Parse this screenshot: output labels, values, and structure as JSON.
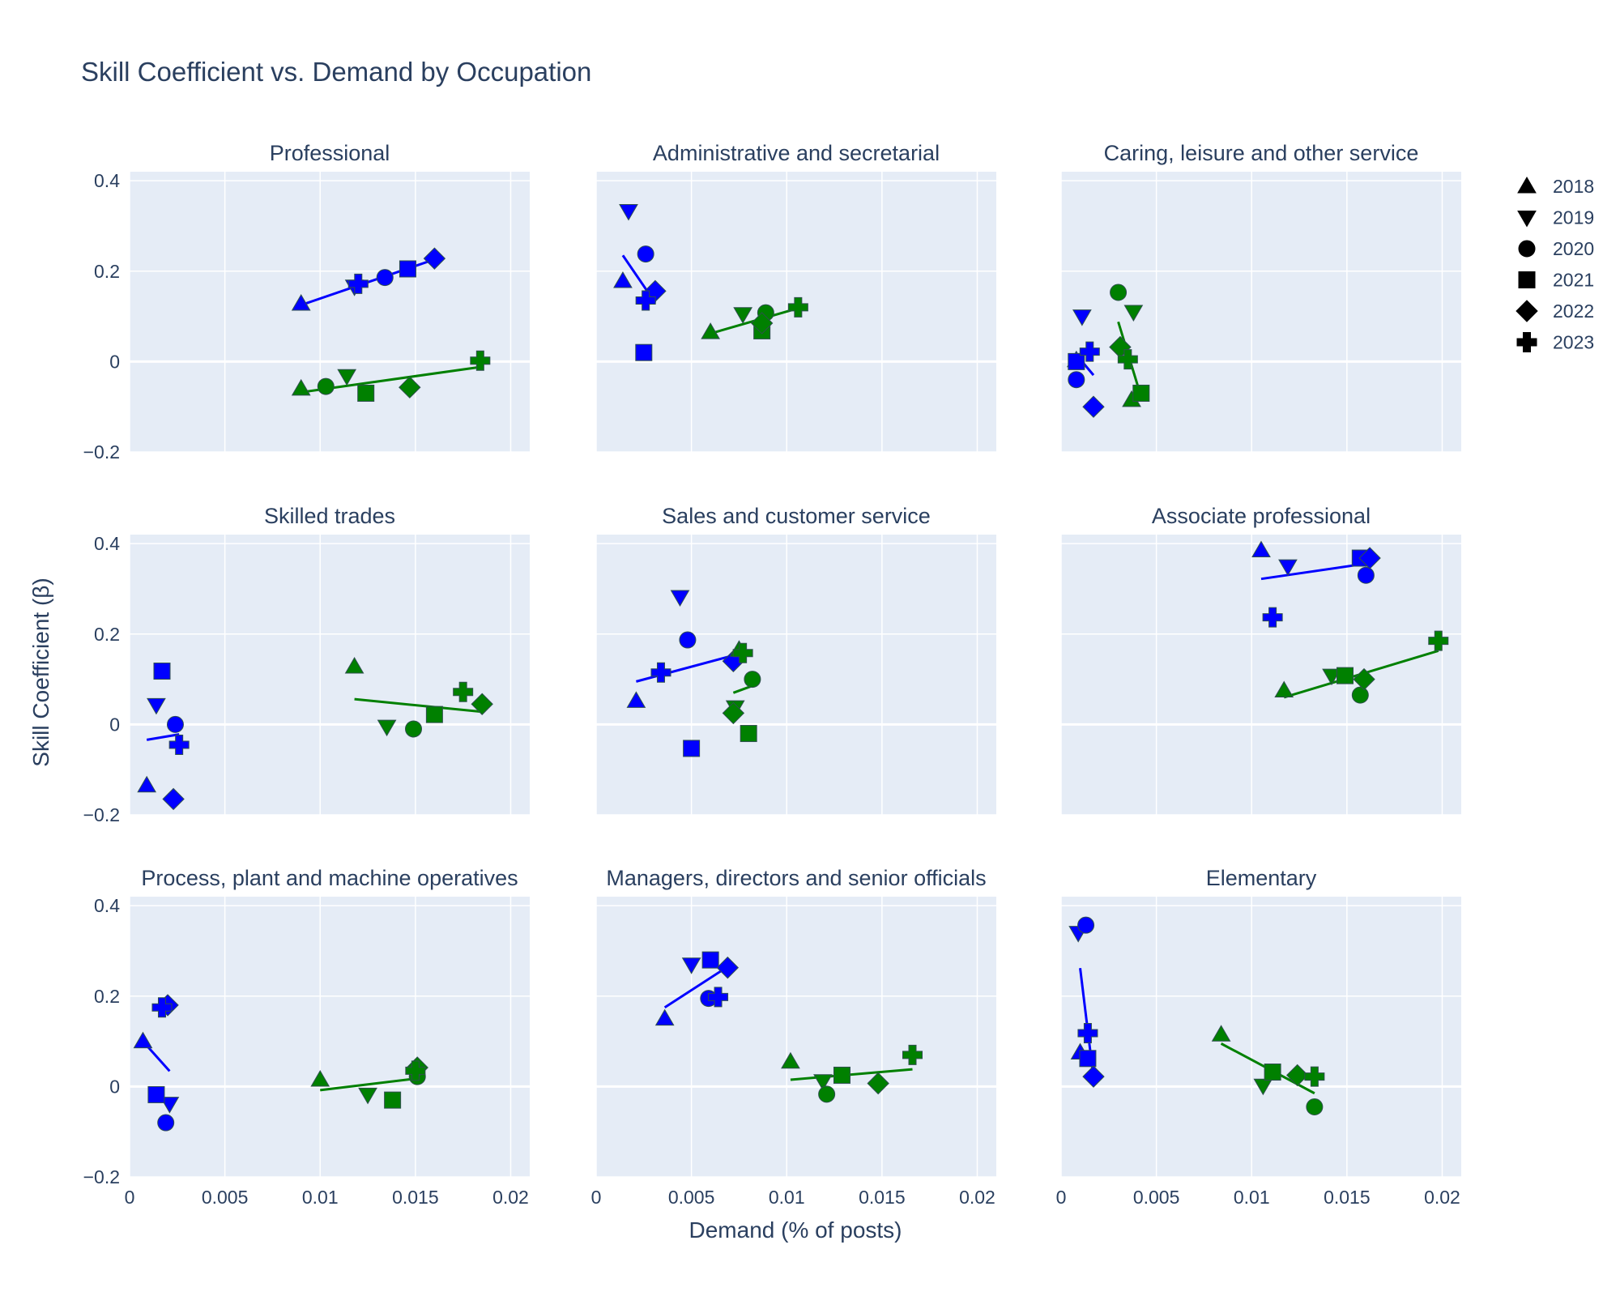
{
  "chart_data": {
    "type": "scatter",
    "title": "Skill Coefficient vs. Demand by Occupation",
    "xlabel": "Demand (% of posts)",
    "ylabel": "Skill Coefficient (β)",
    "xlim": [
      0,
      0.021
    ],
    "ylim": [
      -0.2,
      0.42
    ],
    "x_ticks": [
      0,
      0.005,
      0.01,
      0.015,
      0.02
    ],
    "x_tick_labels": [
      "0",
      "0.005",
      "0.01",
      "0.015",
      "0.02"
    ],
    "y_ticks": [
      -0.2,
      0,
      0.2,
      0.4
    ],
    "y_tick_labels": [
      "−0.2",
      "0",
      "0.2",
      "0.4"
    ],
    "grid": true,
    "legend_position": "right",
    "legend": [
      {
        "year": "2018",
        "symbol": "triangle-up"
      },
      {
        "year": "2019",
        "symbol": "triangle-down"
      },
      {
        "year": "2020",
        "symbol": "circle"
      },
      {
        "year": "2021",
        "symbol": "square"
      },
      {
        "year": "2022",
        "symbol": "diamond"
      },
      {
        "year": "2023",
        "symbol": "cross"
      }
    ],
    "colors": {
      "blue": "#0000ff",
      "green": "#008000",
      "plot_bg": "#e5ecf6",
      "grid": "#ffffff",
      "text": "#2a3f5f",
      "marker_outline": "#2f4f4f"
    },
    "panels": [
      {
        "title": "Professional",
        "blue": {
          "x": [
            0.009,
            0.0118,
            0.0134,
            0.0146,
            0.016,
            0.012
          ],
          "y": [
            0.128,
            0.166,
            0.186,
            0.205,
            0.228,
            0.172
          ],
          "fit": [
            [
              0.009,
              0.125
            ],
            [
              0.016,
              0.226
            ]
          ]
        },
        "green": {
          "x": [
            0.009,
            0.0114,
            0.0103,
            0.0124,
            0.0147,
            0.0184
          ],
          "y": [
            -0.06,
            -0.032,
            -0.055,
            -0.07,
            -0.057,
            0.002
          ],
          "fit": [
            [
              0.009,
              -0.068
            ],
            [
              0.0184,
              -0.012
            ]
          ]
        }
      },
      {
        "title": "Administrative and secretarial",
        "blue": {
          "x": [
            0.0014,
            0.0017,
            0.0026,
            0.0025,
            0.0031,
            0.0026
          ],
          "y": [
            0.178,
            0.333,
            0.238,
            0.02,
            0.156,
            0.135
          ],
          "fit": [
            [
              0.0014,
              0.235
            ],
            [
              0.0031,
              0.13
            ]
          ]
        },
        "green": {
          "x": [
            0.006,
            0.0077,
            0.0089,
            0.0087,
            0.0087,
            0.0106
          ],
          "y": [
            0.065,
            0.105,
            0.108,
            0.068,
            0.085,
            0.12
          ],
          "fit": [
            [
              0.006,
              0.062
            ],
            [
              0.0106,
              0.118
            ]
          ]
        }
      },
      {
        "title": "Caring, leisure and other service",
        "blue": {
          "x": [
            0.0008,
            0.0011,
            0.0008,
            0.0008,
            0.0017,
            0.0015
          ],
          "y": [
            0.003,
            0.1,
            -0.04,
            0.0,
            -0.1,
            0.022
          ],
          "fit": [
            [
              0.0008,
              0.015
            ],
            [
              0.0017,
              -0.03
            ]
          ]
        },
        "green": {
          "x": [
            0.0037,
            0.0038,
            0.003,
            0.0042,
            0.0031,
            0.0035
          ],
          "y": [
            -0.085,
            0.11,
            0.153,
            -0.07,
            0.032,
            0.005
          ],
          "fit": [
            [
              0.003,
              0.088
            ],
            [
              0.0042,
              -0.078
            ]
          ]
        }
      },
      {
        "title": "Skilled trades",
        "blue": {
          "x": [
            0.0009,
            0.0014,
            0.0024,
            0.0017,
            0.0023,
            0.0026
          ],
          "y": [
            -0.135,
            0.043,
            0.0,
            0.118,
            -0.165,
            -0.045
          ],
          "fit": [
            [
              0.0009,
              -0.034
            ],
            [
              0.0026,
              -0.022
            ]
          ]
        },
        "green": {
          "x": [
            0.0118,
            0.0135,
            0.0149,
            0.016,
            0.0185,
            0.0175
          ],
          "y": [
            0.128,
            -0.005,
            -0.01,
            0.022,
            0.045,
            0.072
          ],
          "fit": [
            [
              0.0118,
              0.056
            ],
            [
              0.0185,
              0.028
            ]
          ]
        }
      },
      {
        "title": "Sales and customer service",
        "blue": {
          "x": [
            0.0021,
            0.0044,
            0.0048,
            0.005,
            0.0072,
            0.0034
          ],
          "y": [
            0.052,
            0.282,
            0.187,
            -0.053,
            0.14,
            0.115
          ],
          "fit": [
            [
              0.0021,
              0.095
            ],
            [
              0.0074,
              0.155
            ]
          ]
        },
        "green": {
          "x": [
            0.0075,
            0.0073,
            0.0082,
            0.008,
            0.0072,
            0.0077
          ],
          "y": [
            0.165,
            0.038,
            0.1,
            -0.02,
            0.025,
            0.158
          ],
          "fit": [
            [
              0.0072,
              0.07
            ],
            [
              0.0083,
              0.087
            ]
          ]
        }
      },
      {
        "title": "Associate professional",
        "blue": {
          "x": [
            0.0105,
            0.0119,
            0.016,
            0.0157,
            0.0162,
            0.0111
          ],
          "y": [
            0.385,
            0.35,
            0.33,
            0.368,
            0.368,
            0.237
          ],
          "fit": [
            [
              0.0105,
              0.322
            ],
            [
              0.0162,
              0.357
            ]
          ]
        },
        "green": {
          "x": [
            0.0117,
            0.0142,
            0.0157,
            0.0149,
            0.0159,
            0.0198
          ],
          "y": [
            0.075,
            0.108,
            0.065,
            0.108,
            0.1,
            0.185
          ],
          "fit": [
            [
              0.0117,
              0.06
            ],
            [
              0.0198,
              0.163
            ]
          ]
        }
      },
      {
        "title": "Process, plant and machine operatives",
        "blue": {
          "x": [
            0.0007,
            0.0021,
            0.0019,
            0.0014,
            0.002,
            0.0017
          ],
          "y": [
            0.1,
            -0.038,
            -0.08,
            -0.018,
            0.18,
            0.175
          ],
          "fit": [
            [
              0.0007,
              0.1
            ],
            [
              0.0021,
              0.034
            ]
          ]
        },
        "green": {
          "x": [
            0.01,
            0.0125,
            0.0151,
            0.0138,
            0.0151,
            0.015
          ],
          "y": [
            0.015,
            -0.018,
            0.022,
            -0.03,
            0.042,
            0.035
          ],
          "fit": [
            [
              0.01,
              -0.008
            ],
            [
              0.0151,
              0.018
            ]
          ]
        }
      },
      {
        "title": "Managers, directors and senior officials",
        "blue": {
          "x": [
            0.0036,
            0.005,
            0.0059,
            0.006,
            0.0069,
            0.0064
          ],
          "y": [
            0.15,
            0.27,
            0.195,
            0.28,
            0.263,
            0.198
          ],
          "fit": [
            [
              0.0036,
              0.175
            ],
            [
              0.0069,
              0.265
            ]
          ]
        },
        "green": {
          "x": [
            0.0102,
            0.0119,
            0.0121,
            0.0129,
            0.0148,
            0.0166
          ],
          "y": [
            0.055,
            0.012,
            -0.017,
            0.025,
            0.007,
            0.07
          ],
          "fit": [
            [
              0.0102,
              0.015
            ],
            [
              0.0166,
              0.038
            ]
          ]
        }
      },
      {
        "title": "Elementary",
        "blue": {
          "x": [
            0.001,
            0.0009,
            0.0013,
            0.0014,
            0.0017,
            0.0014
          ],
          "y": [
            0.075,
            0.34,
            0.357,
            0.062,
            0.022,
            0.118
          ],
          "fit": [
            [
              0.001,
              0.262
            ],
            [
              0.0017,
              0.02
            ]
          ]
        },
        "green": {
          "x": [
            0.0084,
            0.0106,
            0.0133,
            0.0111,
            0.0124,
            0.0133
          ],
          "y": [
            0.115,
            0.002,
            -0.045,
            0.032,
            0.025,
            0.022
          ],
          "fit": [
            [
              0.0084,
              0.095
            ],
            [
              0.0133,
              -0.015
            ]
          ]
        }
      }
    ]
  }
}
